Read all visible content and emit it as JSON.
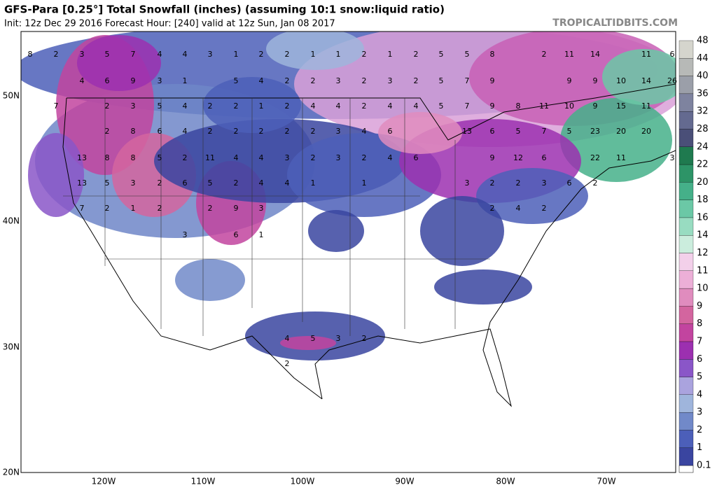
{
  "header": {
    "title": "GFS-Para [0.25°] Total Snowfall (inches) (assuming 10:1 snow:liquid ratio)",
    "subtitle": "Init: 12z Dec 29 2016   Forecast Hour: [240]   valid at 12z Sun, Jan 08 2017",
    "watermark": "TROPICALTIDBITS.COM"
  },
  "map": {
    "lat_labels": [
      "50N",
      "40N",
      "30N",
      "20N"
    ],
    "lon_labels": [
      "120W",
      "110W",
      "100W",
      "90W",
      "80W",
      "70W"
    ],
    "snowfall_labels": [
      8,
      2,
      3,
      5,
      7,
      4,
      4,
      3,
      1,
      2,
      2,
      1,
      1,
      2,
      1,
      2,
      5,
      5,
      8,
      2,
      11,
      14,
      11,
      6,
      4,
      6,
      9,
      3,
      1,
      5,
      4,
      2,
      2,
      3,
      2,
      3,
      2,
      5,
      7,
      9,
      9,
      9,
      10,
      14,
      26,
      7,
      2,
      3,
      5,
      4,
      2,
      2,
      1,
      2,
      4,
      4,
      2,
      4,
      4,
      5,
      7,
      9,
      8,
      11,
      10,
      9,
      15,
      11,
      2,
      8,
      6,
      4,
      2,
      2,
      2,
      2,
      2,
      3,
      4,
      6,
      13,
      6,
      5,
      7,
      5,
      23,
      20,
      20,
      13,
      8,
      8,
      5,
      2,
      11,
      4,
      4,
      3,
      2,
      3,
      2,
      4,
      6,
      9,
      12,
      6,
      22,
      11,
      3,
      13,
      5,
      3,
      2,
      6,
      5,
      2,
      4,
      4,
      1,
      1,
      3,
      2,
      2,
      3,
      6,
      2,
      7,
      2,
      1,
      2,
      2,
      9,
      3,
      2,
      4,
      2,
      3,
      6,
      1,
      4,
      5,
      3,
      2,
      2
    ]
  },
  "colorbar": {
    "levels": [
      0.1,
      1,
      2,
      3,
      4,
      5,
      6,
      7,
      8,
      9,
      10,
      11,
      12,
      14,
      16,
      18,
      20,
      22,
      24,
      28,
      32,
      36,
      40,
      44,
      48
    ],
    "colors": [
      "#3a45a0",
      "#4c5fb9",
      "#7189c9",
      "#9fb5dc",
      "#aaa3de",
      "#8a56c8",
      "#9c30b0",
      "#c2449f",
      "#d3659f",
      "#e08cbe",
      "#ecafd7",
      "#f3d0ea",
      "#cbeddd",
      "#98dcc1",
      "#6bc8a6",
      "#45b089",
      "#2d9467",
      "#1f7a4f",
      "#4a4f78",
      "#646a90",
      "#7e839f",
      "#9b9fa9",
      "#b7b9b7",
      "#d5d5cd"
    ]
  }
}
